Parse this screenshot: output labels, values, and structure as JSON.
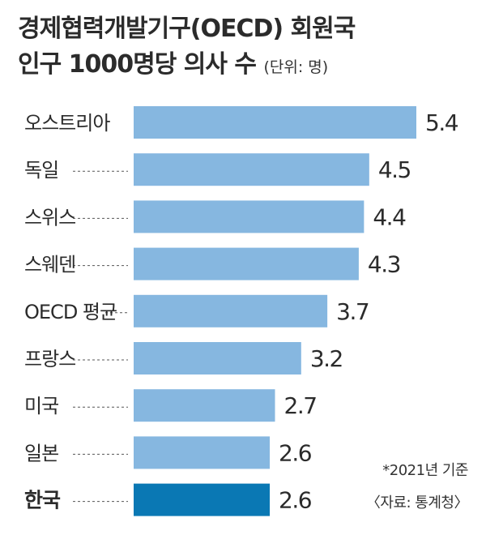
{
  "title_line1": "경제협력개발기구(OECD) 회원국",
  "title_line2": "인구 1000명당 의사 수",
  "unit": "(단위: 명)",
  "note_year": "*2021년 기준",
  "note_source": "〈자료: 통계청〉",
  "colors": {
    "bar": "#86b7e0",
    "highlight": "#0a78b4",
    "label": "#2b2b2b",
    "dash": "#555555"
  },
  "chart_data": {
    "type": "bar",
    "orientation": "horizontal",
    "categories": [
      "오스트리아",
      "독일",
      "스위스",
      "스웨덴",
      "OECD 평균",
      "프랑스",
      "미국",
      "일본",
      "한국"
    ],
    "values": [
      5.4,
      4.5,
      4.4,
      4.3,
      3.7,
      3.2,
      2.7,
      2.6,
      2.6
    ],
    "value_labels": [
      "5.4",
      "4.5",
      "4.4",
      "4.3",
      "3.7",
      "3.2",
      "2.7",
      "2.6",
      "2.6"
    ],
    "highlight_category": "한국",
    "title": "경제협력개발기구(OECD) 회원국 인구 1000명당 의사 수",
    "xlabel": "",
    "ylabel": "",
    "xlim": [
      0,
      5.4
    ],
    "grid": false,
    "legend": "none"
  }
}
